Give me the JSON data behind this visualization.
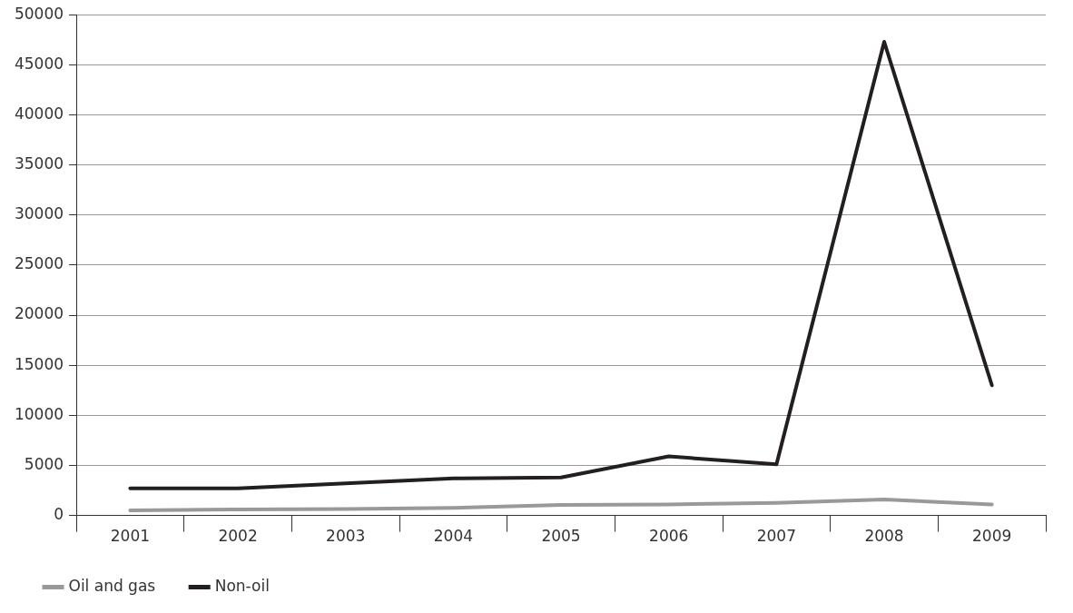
{
  "chart_data": {
    "type": "line",
    "categories": [
      "2001",
      "2002",
      "2003",
      "2004",
      "2005",
      "2006",
      "2007",
      "2008",
      "2009"
    ],
    "series": [
      {
        "name": "Oil and gas",
        "color": "#999999",
        "values": [
          500,
          600,
          650,
          750,
          1050,
          1100,
          1250,
          1600,
          1100
        ]
      },
      {
        "name": "Non-oil",
        "color": "#231f20",
        "values": [
          2700,
          2700,
          3200,
          3700,
          3800,
          5900,
          5100,
          47300,
          13000
        ]
      }
    ],
    "ylim": [
      0,
      50000
    ],
    "yticks": [
      0,
      5000,
      10000,
      15000,
      20000,
      25000,
      30000,
      35000,
      40000,
      45000,
      50000
    ],
    "grid": "y",
    "legend": "bottom left",
    "marker": "none",
    "line_style": "solid"
  }
}
